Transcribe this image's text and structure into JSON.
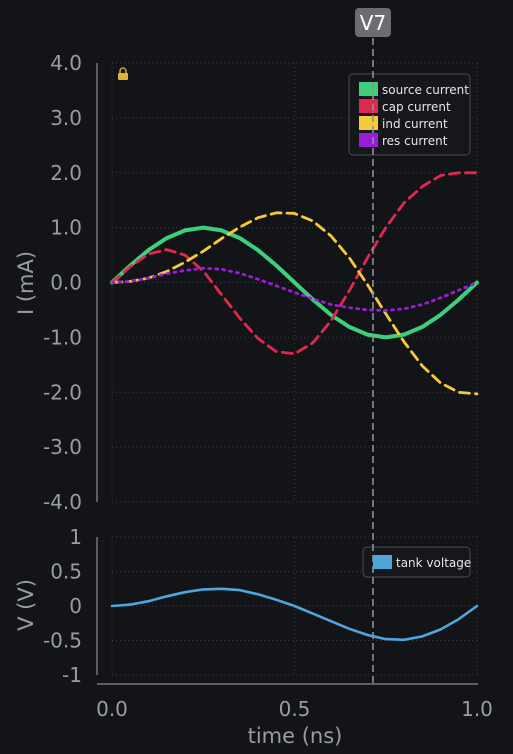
{
  "chart_data": [
    {
      "type": "line",
      "xlabel": "",
      "ylabel": "I (mA)",
      "xlim": [
        0,
        1
      ],
      "ylim": [
        -4,
        4
      ],
      "y_ticks": [
        "4.0",
        "3.0",
        "2.0",
        "1.0",
        "0.0",
        "-1.0",
        "-2.0",
        "-3.0",
        "-4.0"
      ],
      "y_tick_values": [
        4,
        3,
        2,
        1,
        0,
        -1,
        -2,
        -3,
        -4
      ],
      "grid": true,
      "legend": "top-right",
      "lock_icon": "lock-icon",
      "x": [
        0,
        0.05,
        0.1,
        0.15,
        0.2,
        0.25,
        0.3,
        0.35,
        0.4,
        0.45,
        0.5,
        0.55,
        0.6,
        0.65,
        0.7,
        0.75,
        0.8,
        0.85,
        0.9,
        0.95,
        1.0
      ],
      "series": [
        {
          "name": "source current",
          "color": "#3ecf7a",
          "style": "solid",
          "values": [
            0,
            0.31,
            0.59,
            0.81,
            0.95,
            1.0,
            0.95,
            0.81,
            0.59,
            0.31,
            0,
            -0.31,
            -0.59,
            -0.81,
            -0.95,
            -1.0,
            -0.95,
            -0.81,
            -0.59,
            -0.31,
            0
          ]
        },
        {
          "name": "cap current",
          "color": "#e0294f",
          "style": "dashed",
          "values": [
            0,
            0.29,
            0.52,
            0.6,
            0.5,
            0.21,
            -0.22,
            -0.65,
            -1.02,
            -1.26,
            -1.3,
            -1.1,
            -0.7,
            -0.15,
            0.45,
            1.0,
            1.45,
            1.75,
            1.95,
            2.0,
            2.0
          ]
        },
        {
          "name": "ind current",
          "color": "#f5cb3a",
          "style": "dashed",
          "values": [
            0,
            0.02,
            0.08,
            0.2,
            0.37,
            0.57,
            0.8,
            1.01,
            1.18,
            1.27,
            1.26,
            1.12,
            0.85,
            0.45,
            -0.04,
            -0.57,
            -1.08,
            -1.52,
            -1.83,
            -2.0,
            -2.03
          ]
        },
        {
          "name": "res current",
          "color": "#9b1bd9",
          "style": "dotted",
          "values": [
            0,
            0.02,
            0.08,
            0.16,
            0.22,
            0.26,
            0.24,
            0.17,
            0.06,
            -0.06,
            -0.18,
            -0.3,
            -0.4,
            -0.46,
            -0.5,
            -0.51,
            -0.48,
            -0.4,
            -0.28,
            -0.14,
            0
          ]
        }
      ]
    },
    {
      "type": "line",
      "xlabel": "time (ns)",
      "ylabel": "V (V)",
      "xlim": [
        0,
        1
      ],
      "ylim": [
        -1,
        1
      ],
      "x_ticks": [
        "0.0",
        "0.5",
        "1.0"
      ],
      "x_tick_values": [
        0,
        0.5,
        1.0
      ],
      "y_ticks": [
        "1",
        "0.5",
        "0",
        "-0.5",
        "-1"
      ],
      "y_tick_values": [
        1,
        0.5,
        0,
        -0.5,
        -1
      ],
      "grid": true,
      "legend": "top-right",
      "x": [
        0,
        0.05,
        0.1,
        0.15,
        0.2,
        0.25,
        0.3,
        0.35,
        0.4,
        0.45,
        0.5,
        0.55,
        0.6,
        0.65,
        0.7,
        0.75,
        0.8,
        0.85,
        0.9,
        0.95,
        1.0
      ],
      "series": [
        {
          "name": "tank voltage",
          "color": "#4ea6db",
          "style": "solid",
          "values": [
            0,
            0.02,
            0.07,
            0.14,
            0.2,
            0.24,
            0.25,
            0.23,
            0.17,
            0.09,
            0,
            -0.11,
            -0.22,
            -0.33,
            -0.42,
            -0.48,
            -0.49,
            -0.44,
            -0.34,
            -0.19,
            0
          ]
        }
      ]
    }
  ],
  "cursor": {
    "label": "V7",
    "x": 0.715
  }
}
